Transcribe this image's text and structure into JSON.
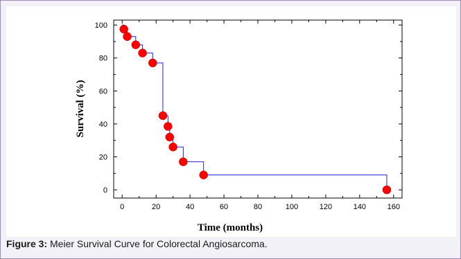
{
  "caption": {
    "label": "Figure 3:",
    "text": " Meier Survival Curve for Colorectal Angiosarcoma."
  },
  "chart_data": {
    "type": "line",
    "xlabel": "Time (months)",
    "ylabel": "Survival (%)",
    "xlim": [
      -5,
      165
    ],
    "ylim": [
      -5,
      103
    ],
    "xticks": [
      0,
      20,
      40,
      60,
      80,
      100,
      120,
      140,
      160
    ],
    "yticks": [
      0,
      20,
      40,
      60,
      80,
      100
    ],
    "step_curve": {
      "color": "#1f1fd1",
      "points": [
        [
          0,
          100
        ],
        [
          1,
          97.5
        ],
        [
          3,
          93
        ],
        [
          8,
          88
        ],
        [
          12,
          83
        ],
        [
          18,
          77
        ],
        [
          24,
          45
        ],
        [
          27,
          38.5
        ],
        [
          28,
          32
        ],
        [
          30,
          26
        ],
        [
          36,
          17
        ],
        [
          48,
          9
        ],
        [
          156,
          0
        ]
      ]
    },
    "markers": {
      "color": "#ff0000",
      "points": [
        [
          1,
          97.5
        ],
        [
          3,
          93
        ],
        [
          8,
          88
        ],
        [
          12,
          83
        ],
        [
          18,
          77
        ],
        [
          24,
          45
        ],
        [
          27,
          38.5
        ],
        [
          28,
          32
        ],
        [
          30,
          26
        ],
        [
          36,
          17
        ],
        [
          48,
          9
        ],
        [
          156,
          0
        ]
      ]
    }
  }
}
